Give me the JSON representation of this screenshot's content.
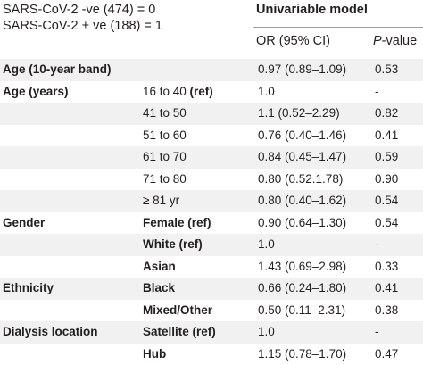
{
  "header": {
    "group_line1": "SARS-CoV-2 -ve (474) = 0",
    "group_line2": "SARS-CoV-2 + ve (188) = 1",
    "model_title": "Univariable model",
    "col_or": "OR (95% CI)",
    "col_p_italic": "P",
    "col_p_rest": "-value"
  },
  "rows": [
    {
      "label": "Age (10-year band)",
      "sub": "",
      "or": "0.97 (0.89–1.09)",
      "p": "0.53",
      "bold_sub": false
    },
    {
      "label": "Age (years)",
      "sub": "16 to 40 (ref)",
      "or": "1.0",
      "p": "-",
      "bold_sub": false
    },
    {
      "label": "",
      "sub": "41 to 50",
      "or": "1.1 (0.52–2.29)",
      "p": "0.82",
      "bold_sub": false
    },
    {
      "label": "",
      "sub": "51 to 60",
      "or": "0.76 (0.40–1.46)",
      "p": "0.41",
      "bold_sub": false
    },
    {
      "label": "",
      "sub": "61 to 70",
      "or": "0.84 (0.45–1.47)",
      "p": "0.59",
      "bold_sub": false
    },
    {
      "label": "",
      "sub": "71 to 80",
      "or": "0.80 (0.52.1.78)",
      "p": "0.90",
      "bold_sub": false
    },
    {
      "label": "",
      "sub": "≥ 81 yr",
      "or": "0.80 (0.40–1.62)",
      "p": "0.54",
      "bold_sub": false
    },
    {
      "label": "Gender",
      "sub": "Female (ref)",
      "or": "0.90 (0.64–1.30)",
      "p": "0.54",
      "bold_sub": true
    },
    {
      "label": "",
      "sub": "White (ref)",
      "or": "1.0",
      "p": "-",
      "bold_sub": true
    },
    {
      "label": "",
      "sub": "Asian",
      "or": "1.43 (0.69–2.98)",
      "p": "0.33",
      "bold_sub": true
    },
    {
      "label": "Ethnicity",
      "sub": "Black",
      "or": "0.66 (0.24–1.80)",
      "p": "0.41",
      "bold_sub": true
    },
    {
      "label": "",
      "sub": "Mixed/Other",
      "or": "0.50 (0.11–2.31)",
      "p": "0.38",
      "bold_sub": true
    },
    {
      "label": "Dialysis location",
      "sub": "Satellite (ref)",
      "or": "1.0",
      "p": "-",
      "bold_sub": true
    },
    {
      "label": "",
      "sub": "Hub",
      "or": "1.15 (0.78–1.70)",
      "p": "0.47",
      "bold_sub": true
    }
  ]
}
